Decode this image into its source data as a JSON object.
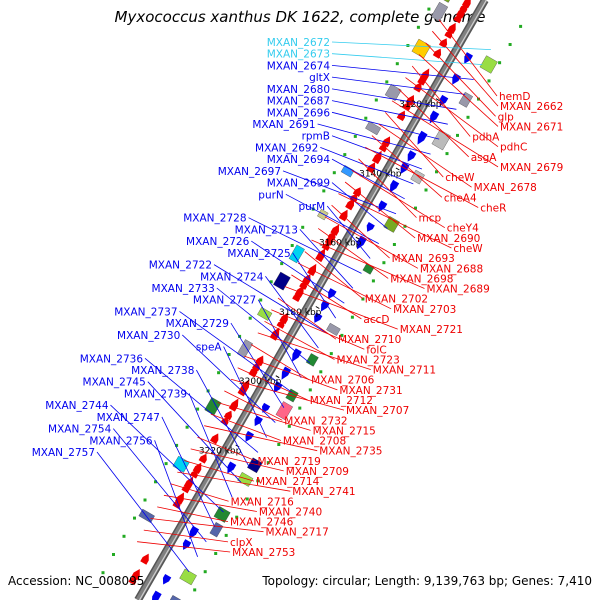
{
  "title": "Myxococcus xanthus DK 1622, complete genome",
  "footer": {
    "accession": "Accession: NC_008095",
    "topology": "Topology: circular; Length: 9,139,763 bp; Genes: 7,410"
  },
  "colors": {
    "forward_label": "#0000ee",
    "reverse_label": "#ee0000",
    "highlight_label": "#33ccee",
    "backbone": "#808080",
    "forward_gene": "#0000ee",
    "reverse_gene": "#ee0000"
  },
  "scale_ticks": [
    "3120 kbp",
    "3140 kbp",
    "3160 kbp",
    "3180 kbp",
    "3200 kbp",
    "3220 kbp"
  ],
  "forward_genes": [
    {
      "label": "MXAN_2672",
      "highlight": true
    },
    {
      "label": "MXAN_2673",
      "highlight": true
    },
    {
      "label": "MXAN_2674"
    },
    {
      "label": "gltX"
    },
    {
      "label": "MXAN_2680"
    },
    {
      "label": "MXAN_2687"
    },
    {
      "label": "MXAN_2696"
    },
    {
      "label": "MXAN_2691"
    },
    {
      "label": "rpmB"
    },
    {
      "label": "MXAN_2692"
    },
    {
      "label": "MXAN_2694"
    },
    {
      "label": "MXAN_2697"
    },
    {
      "label": "MXAN_2699"
    },
    {
      "label": "purN"
    },
    {
      "label": "purM"
    },
    {
      "label": "MXAN_2728"
    },
    {
      "label": "MXAN_2713"
    },
    {
      "label": "MXAN_2726"
    },
    {
      "label": "MXAN_2725"
    },
    {
      "label": "MXAN_2722"
    },
    {
      "label": "MXAN_2724"
    },
    {
      "label": "MXAN_2733"
    },
    {
      "label": "MXAN_2727"
    },
    {
      "label": "MXAN_2737"
    },
    {
      "label": "MXAN_2729"
    },
    {
      "label": "MXAN_2730"
    },
    {
      "label": "speA"
    },
    {
      "label": "MXAN_2736"
    },
    {
      "label": "MXAN_2738"
    },
    {
      "label": "MXAN_2745"
    },
    {
      "label": "MXAN_2739"
    },
    {
      "label": "MXAN_2744"
    },
    {
      "label": "MXAN_2747"
    },
    {
      "label": "MXAN_2754"
    },
    {
      "label": "MXAN_2756"
    },
    {
      "label": "MXAN_2757"
    }
  ],
  "reverse_genes": [
    {
      "label": "hemD"
    },
    {
      "label": "MXAN_2662"
    },
    {
      "label": "glp"
    },
    {
      "label": "MXAN_2671"
    },
    {
      "label": "pdhA"
    },
    {
      "label": "pdhC"
    },
    {
      "label": "asgA"
    },
    {
      "label": "MXAN_2679"
    },
    {
      "label": "cheW"
    },
    {
      "label": "MXAN_2678"
    },
    {
      "label": "cheA4"
    },
    {
      "label": "cheR"
    },
    {
      "label": "mcp"
    },
    {
      "label": "cheY4"
    },
    {
      "label": "MXAN_2690"
    },
    {
      "label": "cheW"
    },
    {
      "label": "MXAN_2693"
    },
    {
      "label": "MXAN_2688"
    },
    {
      "label": "MXAN_2698"
    },
    {
      "label": "MXAN_2689"
    },
    {
      "label": "MXAN_2702"
    },
    {
      "label": "MXAN_2703"
    },
    {
      "label": "accD"
    },
    {
      "label": "MXAN_2721"
    },
    {
      "label": "MXAN_2710"
    },
    {
      "label": "folC"
    },
    {
      "label": "MXAN_2723"
    },
    {
      "label": "MXAN_2711"
    },
    {
      "label": "MXAN_2706"
    },
    {
      "label": "MXAN_2731"
    },
    {
      "label": "MXAN_2712"
    },
    {
      "label": "MXAN_2707"
    },
    {
      "label": "MXAN_2732"
    },
    {
      "label": "MXAN_2715"
    },
    {
      "label": "MXAN_2708"
    },
    {
      "label": "MXAN_2735"
    },
    {
      "label": "MXAN_2719"
    },
    {
      "label": "MXAN_2709"
    },
    {
      "label": "MXAN_2714"
    },
    {
      "label": "MXAN_2741"
    },
    {
      "label": "MXAN_2716"
    },
    {
      "label": "MXAN_2740"
    },
    {
      "label": "MXAN_2746"
    },
    {
      "label": "MXAN_2717"
    },
    {
      "label": "clpX"
    },
    {
      "label": "MXAN_2753"
    }
  ]
}
